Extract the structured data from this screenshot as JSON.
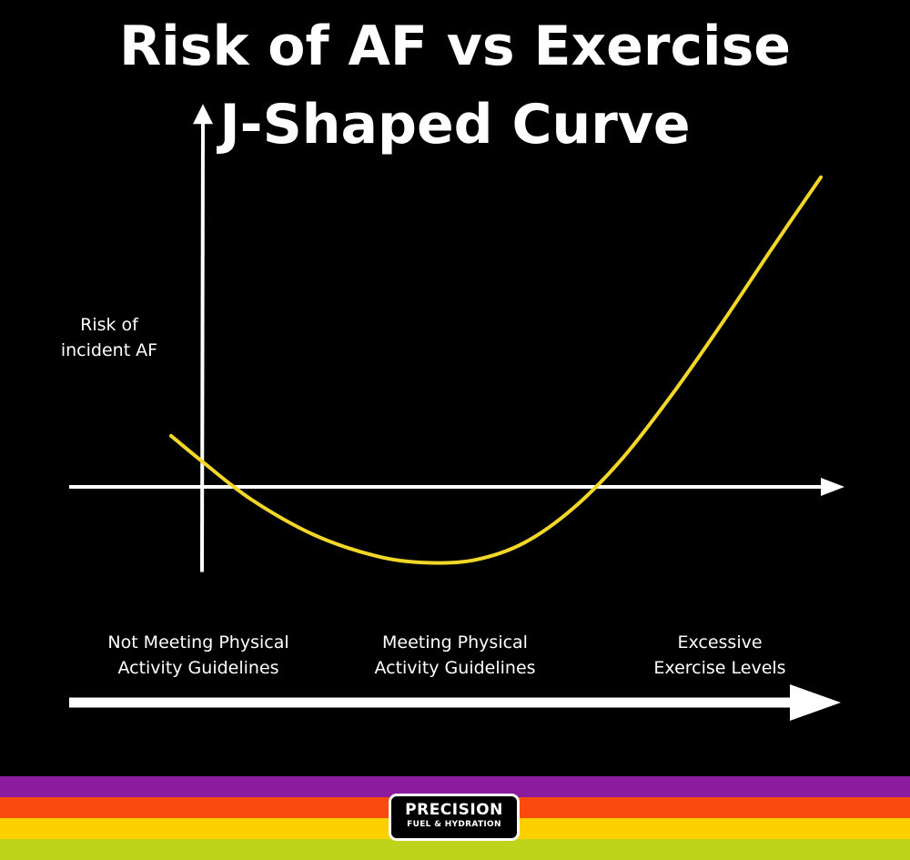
{
  "title": {
    "line1": "Risk of AF vs Exercise",
    "line2": "J-Shaped Curve"
  },
  "chart_data": {
    "type": "line",
    "title": "Risk of AF vs Exercise J-Shaped Curve",
    "ylabel": "Risk of incident AF",
    "ylabel_lines": [
      "Risk of",
      "incident AF"
    ],
    "xlabel": "",
    "xlim": [
      0,
      100
    ],
    "ylim": [
      -10,
      45
    ],
    "grid": false,
    "axes_color": "#ffffff",
    "series": [
      {
        "name": "Risk of incident AF",
        "color": "#f2d628",
        "x": [
          -5,
          0,
          8,
          18,
          28,
          36,
          44,
          52,
          60,
          68,
          76,
          84,
          92,
          100
        ],
        "values": [
          6.0,
          3.0,
          -1.5,
          -5.6,
          -8.1,
          -8.9,
          -8.6,
          -6.6,
          -2.5,
          3.4,
          10.9,
          19.2,
          27.9,
          36.4
        ]
      }
    ],
    "categories": [
      {
        "line1": "Not Meeting Physical",
        "line2": "Activity Guidelines"
      },
      {
        "line1": "Meeting Physical",
        "line2": "Activity Guidelines"
      },
      {
        "line1": "Excessive",
        "line2": "Exercise Levels"
      }
    ]
  },
  "stripe_colors": [
    "#8b1c9e",
    "#fb4a0e",
    "#fcd000",
    "#bdd41a"
  ],
  "logo": {
    "line1": "PRECISION",
    "line2": "FUEL & HYDRATION"
  }
}
